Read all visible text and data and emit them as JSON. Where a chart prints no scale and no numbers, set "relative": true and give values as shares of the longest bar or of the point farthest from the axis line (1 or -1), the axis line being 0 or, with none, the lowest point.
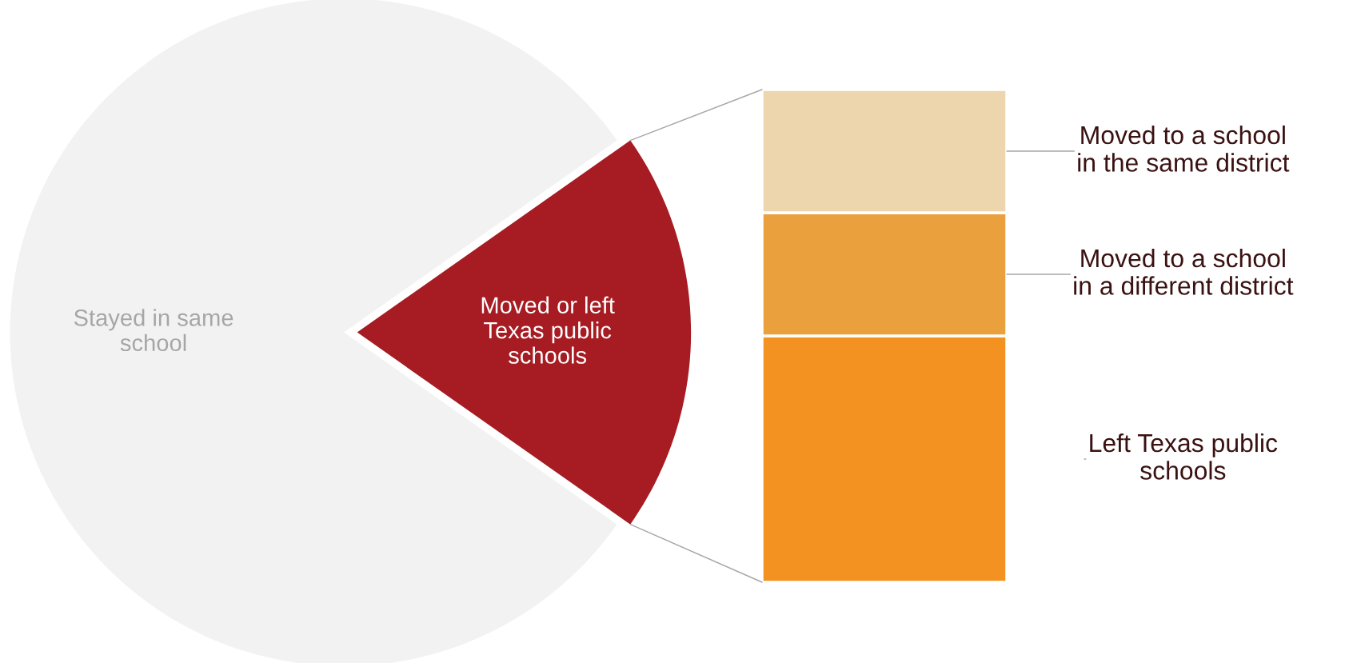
{
  "chart_data": [
    {
      "type": "pie",
      "categories": [
        "Stayed in same school",
        "Moved or left Texas public schools"
      ],
      "values": [
        80.5,
        19.5
      ],
      "colors": [
        "#f2f2f2",
        "#a61c22"
      ]
    },
    {
      "type": "bar",
      "stacked": true,
      "relative": true,
      "categories": [
        null
      ],
      "series": [
        {
          "name": "Left Texas public schools",
          "color": "#f39220",
          "values": [
            0.5
          ]
        },
        {
          "name": "Moved to a school in a different district",
          "color": "#eba03e",
          "values": [
            0.25
          ]
        },
        {
          "name": "Moved to a school in the same district",
          "color": "#edd6ad",
          "values": [
            0.25
          ]
        }
      ]
    }
  ]
}
